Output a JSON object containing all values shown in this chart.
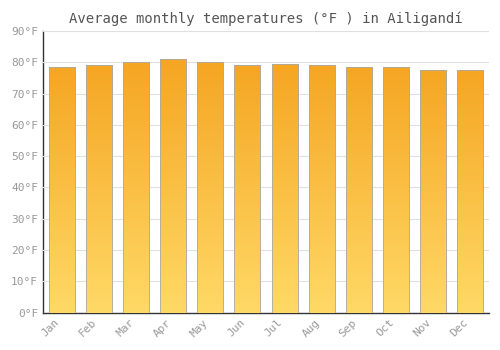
{
  "title": "Average monthly temperatures (°F ) in Ailigandí",
  "months": [
    "Jan",
    "Feb",
    "Mar",
    "Apr",
    "May",
    "Jun",
    "Jul",
    "Aug",
    "Sep",
    "Oct",
    "Nov",
    "Dec"
  ],
  "values": [
    78.5,
    79.0,
    80.0,
    81.0,
    80.0,
    79.0,
    79.5,
    79.0,
    78.5,
    78.5,
    77.5,
    77.5
  ],
  "ylim": [
    0,
    90
  ],
  "yticks": [
    0,
    10,
    20,
    30,
    40,
    50,
    60,
    70,
    80,
    90
  ],
  "ytick_labels": [
    "0°F",
    "10°F",
    "20°F",
    "30°F",
    "40°F",
    "50°F",
    "60°F",
    "70°F",
    "80°F",
    "90°F"
  ],
  "bar_color_top": "#F5A623",
  "bar_color_bottom": "#FFD966",
  "bar_edge_color": "#AAAAAA",
  "background_color": "#FFFFFF",
  "grid_color": "#E0E0E0",
  "title_fontsize": 10,
  "tick_fontsize": 8,
  "bar_width": 0.7
}
